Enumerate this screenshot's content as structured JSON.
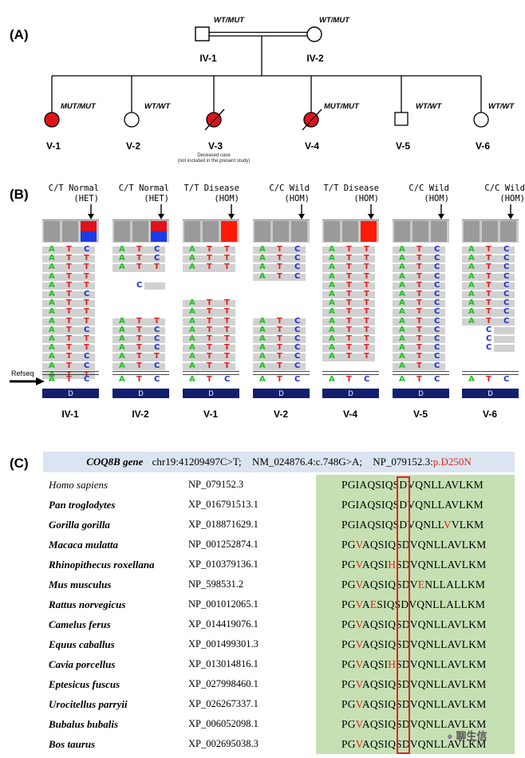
{
  "panels": {
    "a": "(A)",
    "b": "(B)",
    "c": "(C)"
  },
  "colors": {
    "affected": "#e0121b",
    "het_top": "#e0121b",
    "het_bottom": "#1a3be6",
    "hom_disease": "#ff1a0a",
    "hom_wild": "#9a9a9a",
    "A": "#1fbf1f",
    "T": "#e02020",
    "C": "#1f2fd0",
    "banner": "#dbe5f1",
    "align_bg": "#c6e0b4",
    "box": "#e0231f",
    "navy": "#131e6e"
  },
  "pedigree": {
    "parents": [
      {
        "id": "IV-1",
        "sex": "male",
        "genotype": "WT/MUT"
      },
      {
        "id": "IV-2",
        "sex": "female",
        "genotype": "WT/MUT"
      }
    ],
    "children": [
      {
        "id": "V-1",
        "sex": "female",
        "genotype": "MUT/MUT",
        "affected": true,
        "deceased": false
      },
      {
        "id": "V-2",
        "sex": "female",
        "genotype": "WT/WT",
        "affected": false,
        "deceased": false
      },
      {
        "id": "V-3",
        "sex": "female",
        "genotype": "",
        "affected": true,
        "deceased": true
      },
      {
        "id": "V-4",
        "sex": "female",
        "genotype": "MUT/MUT",
        "affected": true,
        "deceased": true
      },
      {
        "id": "V-5",
        "sex": "male",
        "genotype": "WT/WT",
        "affected": false,
        "deceased": false
      },
      {
        "id": "V-6",
        "sex": "female",
        "genotype": "WT/WT",
        "affected": false,
        "deceased": false
      }
    ],
    "note_line1": "Deceased case",
    "note_line2": "(not included in the present study)"
  },
  "igv": {
    "refseq_label": "Refseq",
    "ref_bases": [
      "A",
      "T",
      "C"
    ],
    "gene_label": "D",
    "samples": [
      {
        "label": "IV-1",
        "header": "C/T Normal\n(HET)",
        "type": "het",
        "reads": [
          "ATC",
          "ATT",
          "ATT",
          "ATT",
          "ATT",
          "ATC",
          "ATT",
          "ATT",
          "ATT",
          "ATC",
          "ATT",
          "ATT",
          "ATC",
          "ATC",
          "ATT"
        ]
      },
      {
        "label": "IV-2",
        "header": "C/T Normal\n(HET)",
        "type": "het",
        "reads": [
          "ATC",
          "ATC",
          "ATT",
          "-",
          "-C",
          "-",
          "-",
          "-",
          "ATT",
          "ATC",
          "ATC",
          "ATC",
          "ATT",
          "ATC"
        ]
      },
      {
        "label": "V-1",
        "header": "T/T Disease\n(HOM)",
        "type": "disease",
        "reads": [
          "ATT",
          "ATT",
          "ATT",
          "-",
          "-",
          "-",
          "ATT",
          "ATT",
          "ATT",
          "ATT",
          "ATT",
          "ATT",
          "ATT",
          "ATT"
        ]
      },
      {
        "label": "V-2",
        "header": "C/C Wild\n(HOM)",
        "type": "wild",
        "reads": [
          "ATC",
          "ATC",
          "ATC",
          "ATC",
          "-",
          "-",
          "-",
          "-",
          "ATC",
          "ATC",
          "ATC",
          "ATC",
          "ATC",
          "ATC"
        ]
      },
      {
        "label": "V-4",
        "header": "T/T Disease\n(HOM)",
        "type": "disease",
        "reads": [
          "ATT",
          "ATT",
          "ATT",
          "ATT",
          "ATT",
          "ATT",
          "ATT",
          "ATT",
          "ATT",
          "ATT",
          "ATT",
          "ATT",
          "ATT"
        ]
      },
      {
        "label": "V-5",
        "header": "C/C Wild\n(HOM)",
        "type": "wild",
        "reads": [
          "ATC",
          "ATC",
          "ATC",
          "ATC",
          "ATC",
          "ATC",
          "ATC",
          "ATC",
          "ATC",
          "ATC",
          "ATC",
          "ATC",
          "ATC",
          "ATC"
        ]
      },
      {
        "label": "V-6",
        "header": "C/C Wild\n(HOM)",
        "type": "wild",
        "reads": [
          "ATC",
          "ATC",
          "ATC",
          "ATC",
          "ATC",
          "ATC",
          "ATC",
          "ATC",
          "ATC",
          "-C",
          "-C",
          "-C",
          "-"
        ]
      }
    ]
  },
  "conservation": {
    "gene": "COQ8B gene",
    "genomic": "chr19:41209497C>T;",
    "coding": "NM_024876.4:c.748G>A;",
    "protein_prefix": "NP_079152.3:",
    "protein_change": "p.D250N",
    "rows": [
      {
        "species": "Homo sapiens",
        "accession": "NP_079152.3",
        "seq": "PGIAQSIQSDVQNLLAVLKM",
        "red": []
      },
      {
        "species": "Pan troglodytes",
        "accession": "XP_016791513.1",
        "seq": "PGIAQSIQSDVQNLLAVLKM",
        "red": []
      },
      {
        "species": "Gorilla gorilla",
        "accession": "XP_018871629.1",
        "seq": "PGIAQSIQSDVQNLLVVLKM",
        "red": [
          15
        ]
      },
      {
        "species": "Macaca mulatta",
        "accession": "NP_001252874.1",
        "seq": "PGVAQSIQSDVQNLLAVLKM",
        "red": [
          2
        ]
      },
      {
        "species": "Rhinopithecus roxellana",
        "accession": "XP_010379136.1",
        "seq": "PGVAQSIHSDVQNLLAVLKM",
        "red": [
          2,
          7
        ]
      },
      {
        "species": "Mus musculus",
        "accession": "NP_598531.2",
        "seq": "PGVAQSIQSDVENLLALLKM",
        "red": [
          2,
          11
        ]
      },
      {
        "species": "Rattus norvegicus",
        "accession": "NP_001012065.1",
        "seq": "PGVAESIQSDVQNLLALLKM",
        "red": [
          2,
          4
        ]
      },
      {
        "species": "Camelus ferus",
        "accession": "XP_014419076.1",
        "seq": "PGVAQSIQSDVQNLLAVLKM",
        "red": [
          2
        ]
      },
      {
        "species": "Equus caballus",
        "accession": "XP_001499301.3",
        "seq": "PGVAQSIQSDVQNLLAVLKM",
        "red": [
          2
        ]
      },
      {
        "species": "Cavia porcellus",
        "accession": "XP_013014816.1",
        "seq": "PGVAQSIHSDVQNLLAVLKM",
        "red": [
          2,
          7
        ]
      },
      {
        "species": "Eptesicus fuscus",
        "accession": "XP_027998460.1",
        "seq": "PGVAQSIQSDVQNLLAVLKM",
        "red": [
          2
        ]
      },
      {
        "species": "Urocitellus parryii",
        "accession": "XP_026267337.1",
        "seq": "PGVAQSIQSDVQNLLAVLKM",
        "red": [
          2
        ]
      },
      {
        "species": "Bubalus bubalis",
        "accession": "XP_006052098.1",
        "seq": "PGVAQSIQSDVQNLLAVLKM",
        "red": [
          2
        ]
      },
      {
        "species": "Bos taurus",
        "accession": "XP_002695038.3",
        "seq": "PGVAQSIQSDVQNLLAVLKM",
        "red": [
          2
        ]
      }
    ]
  },
  "watermark": "聊生信"
}
